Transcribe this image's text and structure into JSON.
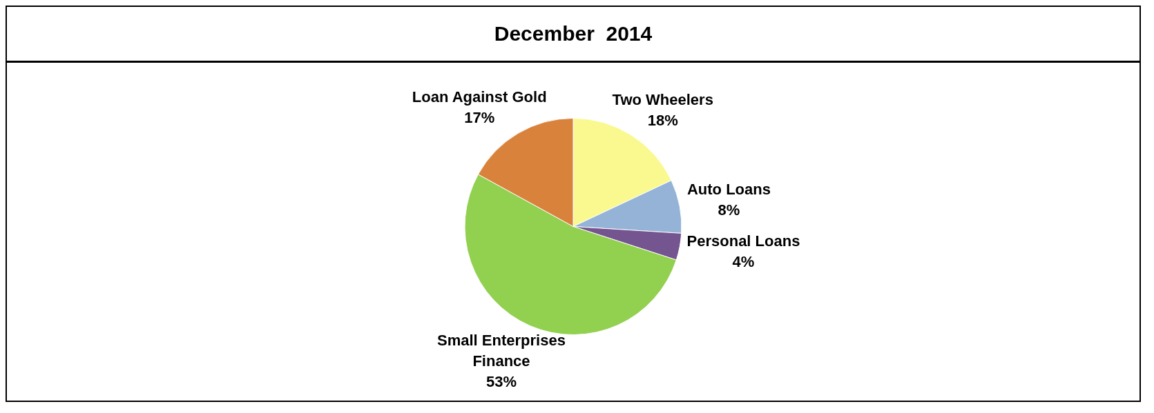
{
  "chart_data": {
    "type": "pie",
    "title": "December  2014",
    "categories": [
      "Two Wheelers",
      "Auto Loans",
      "Personal Loans",
      "Small Enterprises Finance",
      "Loan Against Gold"
    ],
    "values": [
      18,
      8,
      4,
      53,
      17
    ],
    "value_labels": [
      "18%",
      "8%",
      "4%",
      "53%",
      "17%"
    ],
    "colors": [
      "#f9f98f",
      "#95b3d7",
      "#74558f",
      "#92d050",
      "#d9823b"
    ],
    "legend": false
  }
}
